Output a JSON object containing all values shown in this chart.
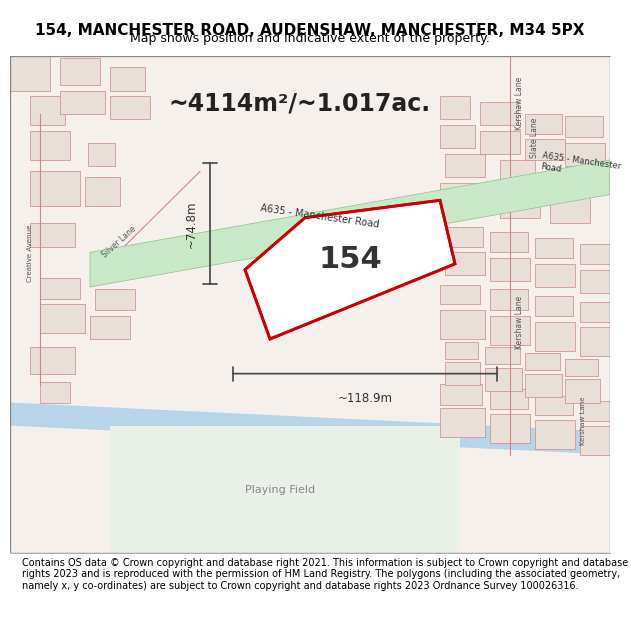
{
  "title": "154, MANCHESTER ROAD, AUDENSHAW, MANCHESTER, M34 5PX",
  "subtitle": "Map shows position and indicative extent of the property.",
  "area_text": "~4114m²/~1.017ac.",
  "label_154": "154",
  "dim_width": "~118.9m",
  "dim_height": "~74.8m",
  "road_label": "A635 - Manchester Road",
  "road_label2": "A635 - Manchester Road",
  "footer": "Contains OS data © Crown copyright and database right 2021. This information is subject to Crown copyright and database rights 2023 and is reproduced with the permission of HM Land Registry. The polygons (including the associated geometry, namely x, y co-ordinates) are subject to Crown copyright and database rights 2023 Ordnance Survey 100026316.",
  "bg_color": "#f5f0eb",
  "map_bg": "#f0ece6",
  "road_green": "#8ec68e",
  "road_green2": "#a8d8a8",
  "road_stroke": "#6aaa6a",
  "water_blue": "#b8d4e8",
  "property_fill": "#ffffff",
  "property_stroke": "#cc0000",
  "property_hatch": "#ffcccc",
  "building_fill": "#e8e0d8",
  "building_stroke": "#cc8888",
  "street_color": "#e0d8cc",
  "dim_color": "#444444",
  "title_fontsize": 11,
  "subtitle_fontsize": 9,
  "area_fontsize": 18,
  "label_fontsize": 22,
  "footer_fontsize": 7
}
